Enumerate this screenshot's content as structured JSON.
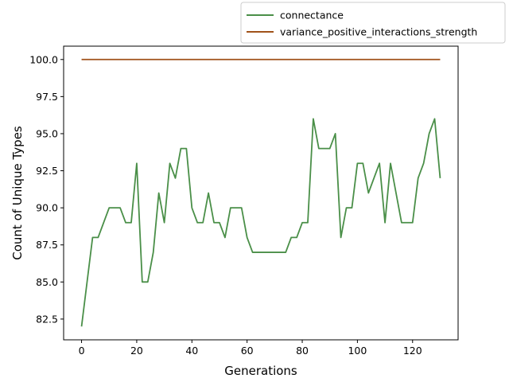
{
  "chart_data": {
    "type": "line",
    "title": "",
    "xlabel": "Generations",
    "ylabel": "Count of Unique Types",
    "xlim": [
      -6.5,
      136.5
    ],
    "ylim": [
      81.1,
      100.9
    ],
    "xticks": [
      0,
      20,
      40,
      60,
      80,
      100,
      120
    ],
    "xtick_labels": [
      "0",
      "20",
      "40",
      "60",
      "80",
      "100",
      "120"
    ],
    "yticks": [
      82.5,
      85.0,
      87.5,
      90.0,
      92.5,
      95.0,
      97.5,
      100.0
    ],
    "ytick_labels": [
      "82.5",
      "85.0",
      "87.5",
      "90.0",
      "92.5",
      "95.0",
      "97.5",
      "100.0"
    ],
    "grid": false,
    "legend_position": "upper right, outside above axes",
    "x": [
      0,
      2,
      4,
      6,
      8,
      10,
      12,
      14,
      16,
      18,
      20,
      22,
      24,
      26,
      28,
      30,
      32,
      34,
      36,
      38,
      40,
      42,
      44,
      46,
      48,
      50,
      52,
      54,
      56,
      58,
      60,
      62,
      64,
      66,
      68,
      70,
      72,
      74,
      76,
      78,
      80,
      82,
      84,
      86,
      88,
      90,
      92,
      94,
      96,
      98,
      100,
      102,
      104,
      106,
      108,
      110,
      112,
      114,
      116,
      118,
      120,
      122,
      124,
      126,
      128,
      130
    ],
    "series": [
      {
        "name": "connectance",
        "color": "#4a8f48",
        "values": [
          82,
          85,
          88,
          88,
          89,
          90,
          90,
          90,
          89,
          89,
          93,
          85,
          85,
          87,
          91,
          89,
          93,
          92,
          94,
          94,
          90,
          89,
          89,
          91,
          89,
          89,
          88,
          90,
          90,
          90,
          88,
          87,
          87,
          87,
          87,
          87,
          87,
          87,
          88,
          88,
          89,
          89,
          96,
          94,
          94,
          94,
          95,
          88,
          90,
          90,
          93,
          93,
          91,
          92,
          93,
          89,
          93,
          91,
          89,
          89,
          89,
          92,
          93,
          95,
          96,
          92
        ]
      },
      {
        "name": "variance_positive_interactions_strength",
        "color": "#a0521a",
        "values": [
          100,
          100,
          100,
          100,
          100,
          100,
          100,
          100,
          100,
          100,
          100,
          100,
          100,
          100,
          100,
          100,
          100,
          100,
          100,
          100,
          100,
          100,
          100,
          100,
          100,
          100,
          100,
          100,
          100,
          100,
          100,
          100,
          100,
          100,
          100,
          100,
          100,
          100,
          100,
          100,
          100,
          100,
          100,
          100,
          100,
          100,
          100,
          100,
          100,
          100,
          100,
          100,
          100,
          100,
          100,
          100,
          100,
          100,
          100,
          100,
          100,
          100,
          100,
          100,
          100,
          100
        ]
      }
    ]
  }
}
